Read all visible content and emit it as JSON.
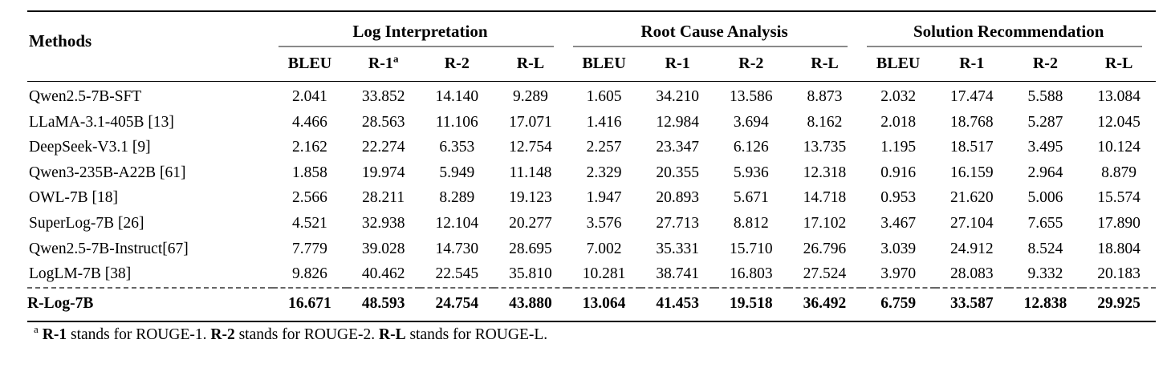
{
  "table": {
    "header": {
      "methods": "Methods",
      "groups": [
        {
          "label": "Log Interpretation"
        },
        {
          "label": "Root Cause Analysis"
        },
        {
          "label": "Solution Recommendation"
        }
      ],
      "sub_columns": [
        {
          "label": "BLEU"
        },
        {
          "label": "R-1",
          "sup": "a"
        },
        {
          "label": "R-2"
        },
        {
          "label": "R-L"
        },
        {
          "label": "BLEU"
        },
        {
          "label": "R-1"
        },
        {
          "label": "R-2"
        },
        {
          "label": "R-L"
        },
        {
          "label": "BLEU"
        },
        {
          "label": "R-1"
        },
        {
          "label": "R-2"
        },
        {
          "label": "R-L"
        }
      ]
    },
    "rows": [
      {
        "method": "Qwen2.5-7B-SFT",
        "bold": false,
        "dashed_above": false,
        "values": [
          "2.041",
          "33.852",
          "14.140",
          "9.289",
          "1.605",
          "34.210",
          "13.586",
          "8.873",
          "2.032",
          "17.474",
          "5.588",
          "13.084"
        ]
      },
      {
        "method": "LLaMA-3.1-405B [13]",
        "bold": false,
        "dashed_above": false,
        "values": [
          "4.466",
          "28.563",
          "11.106",
          "17.071",
          "1.416",
          "12.984",
          "3.694",
          "8.162",
          "2.018",
          "18.768",
          "5.287",
          "12.045"
        ]
      },
      {
        "method": "DeepSeek-V3.1 [9]",
        "bold": false,
        "dashed_above": false,
        "values": [
          "2.162",
          "22.274",
          "6.353",
          "12.754",
          "2.257",
          "23.347",
          "6.126",
          "13.735",
          "1.195",
          "18.517",
          "3.495",
          "10.124"
        ]
      },
      {
        "method": "Qwen3-235B-A22B [61]",
        "bold": false,
        "dashed_above": false,
        "values": [
          "1.858",
          "19.974",
          "5.949",
          "11.148",
          "2.329",
          "20.355",
          "5.936",
          "12.318",
          "0.916",
          "16.159",
          "2.964",
          "8.879"
        ]
      },
      {
        "method": "OWL-7B [18]",
        "bold": false,
        "dashed_above": false,
        "values": [
          "2.566",
          "28.211",
          "8.289",
          "19.123",
          "1.947",
          "20.893",
          "5.671",
          "14.718",
          "0.953",
          "21.620",
          "5.006",
          "15.574"
        ]
      },
      {
        "method": "SuperLog-7B [26]",
        "bold": false,
        "dashed_above": false,
        "values": [
          "4.521",
          "32.938",
          "12.104",
          "20.277",
          "3.576",
          "27.713",
          "8.812",
          "17.102",
          "3.467",
          "27.104",
          "7.655",
          "17.890"
        ]
      },
      {
        "method": "Qwen2.5-7B-Instruct[67]",
        "bold": false,
        "dashed_above": false,
        "values": [
          "7.779",
          "39.028",
          "14.730",
          "28.695",
          "7.002",
          "35.331",
          "15.710",
          "26.796",
          "3.039",
          "24.912",
          "8.524",
          "18.804"
        ]
      },
      {
        "method": "LogLM-7B [38]",
        "bold": false,
        "dashed_above": false,
        "values": [
          "9.826",
          "40.462",
          "22.545",
          "35.810",
          "10.281",
          "38.741",
          "16.803",
          "27.524",
          "3.970",
          "28.083",
          "9.332",
          "20.183"
        ]
      },
      {
        "method": "R-Log-7B",
        "bold": true,
        "dashed_above": true,
        "values": [
          "16.671",
          "48.593",
          "24.754",
          "43.880",
          "13.064",
          "41.453",
          "19.518",
          "36.492",
          "6.759",
          "33.587",
          "12.838",
          "29.925"
        ]
      }
    ],
    "footnote": {
      "marker": "a",
      "segments": [
        {
          "text": "R-1",
          "bold": true
        },
        {
          "text": " stands for ROUGE-1. ",
          "bold": false
        },
        {
          "text": "R-2",
          "bold": true
        },
        {
          "text": " stands for ROUGE-2. ",
          "bold": false
        },
        {
          "text": "R-L",
          "bold": true
        },
        {
          "text": " stands for ROUGE-L.",
          "bold": false
        }
      ]
    },
    "colors": {
      "text": "#000000",
      "rule": "#000000",
      "spanner_rule": "#8a8a8a",
      "dashed_rule": "#666666",
      "background": "#ffffff"
    }
  }
}
